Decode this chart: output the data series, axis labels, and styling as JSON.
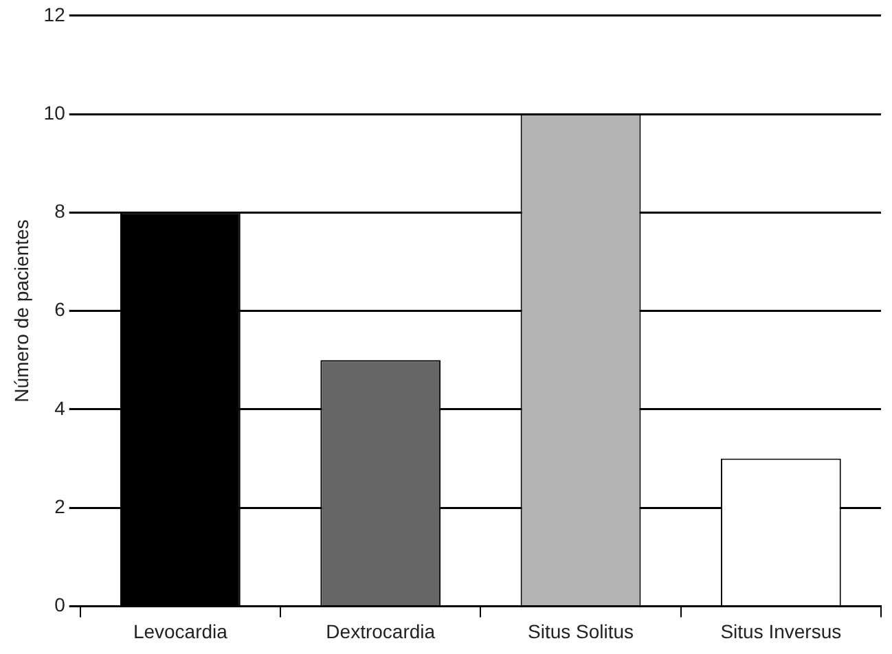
{
  "chart_data": {
    "type": "bar",
    "ylabel": "Número de pacientes",
    "categories": [
      "Levocardia",
      "Dextrocardia",
      "Situs Solitus",
      "Situs Inversus"
    ],
    "values": [
      8,
      5,
      10,
      3
    ],
    "colors": [
      "#000000",
      "#666666",
      "#b3b3b3",
      "#ffffff"
    ],
    "ylim": [
      0,
      12
    ],
    "yticks": [
      0,
      2,
      4,
      6,
      8,
      10,
      12
    ],
    "grid": "y",
    "legend": false
  }
}
